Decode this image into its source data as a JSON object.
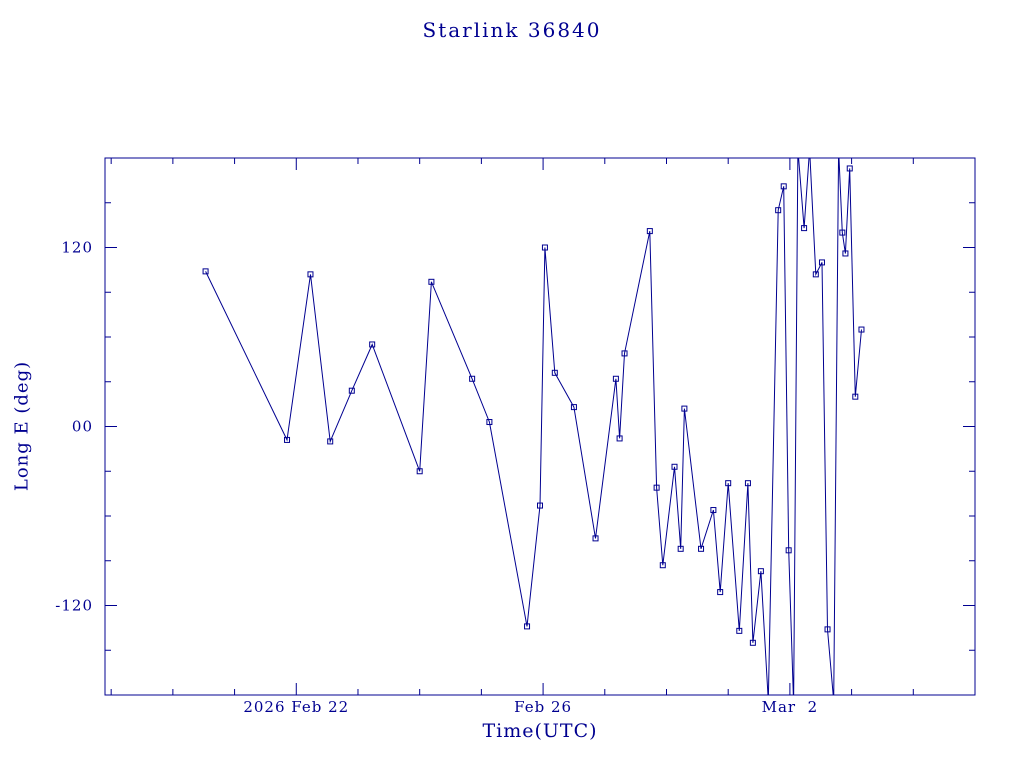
{
  "chart_data": {
    "type": "line",
    "title": "Starlink 36840",
    "xlabel": "Time(UTC)",
    "ylabel": "Long E (deg)",
    "color": "#000090",
    "background": "#ffffff",
    "legend": "none",
    "grid": false,
    "marker": "open-square",
    "x_axis_unit": "days since 2026 Feb 20 00:00 UTC",
    "xlim": [
      -1.1,
      13.0
    ],
    "ylim": [
      -180,
      180
    ],
    "x_major_ticks": [
      {
        "x": 2,
        "label": "2026 Feb 22"
      },
      {
        "x": 6,
        "label": "Feb 26"
      },
      {
        "x": 10,
        "label": "Mar  2"
      }
    ],
    "x_minor_step": 1,
    "y_major_ticks": [
      {
        "y": 120,
        "label": "120"
      },
      {
        "y": 0,
        "label": "00"
      },
      {
        "y": -120,
        "label": "-120"
      }
    ],
    "y_minor_step": 30,
    "points": [
      [
        0.53,
        104
      ],
      [
        1.85,
        -9
      ],
      [
        2.23,
        102
      ],
      [
        2.55,
        -10
      ],
      [
        2.9,
        24
      ],
      [
        3.23,
        55
      ],
      [
        4.0,
        -30
      ],
      [
        4.19,
        97
      ],
      [
        4.85,
        32
      ],
      [
        5.13,
        3
      ],
      [
        5.74,
        -134
      ],
      [
        5.95,
        -53
      ],
      [
        6.03,
        120
      ],
      [
        6.19,
        36
      ],
      [
        6.5,
        13
      ],
      [
        6.85,
        -75
      ],
      [
        7.18,
        32
      ],
      [
        7.24,
        -8
      ],
      [
        7.32,
        49
      ],
      [
        7.73,
        131
      ],
      [
        7.84,
        -41
      ],
      [
        7.94,
        -93
      ],
      [
        8.13,
        -27
      ],
      [
        8.23,
        -82
      ],
      [
        8.29,
        12
      ],
      [
        8.56,
        -82
      ],
      [
        8.76,
        -56
      ],
      [
        8.87,
        -111
      ],
      [
        9.0,
        -38
      ],
      [
        9.18,
        -137
      ],
      [
        9.32,
        -38
      ],
      [
        9.4,
        -145
      ],
      [
        9.53,
        -97
      ],
      [
        9.65,
        -184
      ],
      [
        9.81,
        145
      ],
      [
        9.9,
        161
      ],
      [
        9.98,
        -83
      ],
      [
        10.06,
        -186
      ],
      [
        10.13,
        186
      ],
      [
        10.23,
        133
      ],
      [
        10.32,
        186
      ],
      [
        10.42,
        102
      ],
      [
        10.52,
        110
      ],
      [
        10.61,
        -136
      ],
      [
        10.71,
        -184
      ],
      [
        10.79,
        186
      ],
      [
        10.85,
        130
      ],
      [
        10.9,
        116
      ],
      [
        10.97,
        173
      ],
      [
        11.06,
        20
      ],
      [
        11.16,
        65
      ]
    ]
  }
}
